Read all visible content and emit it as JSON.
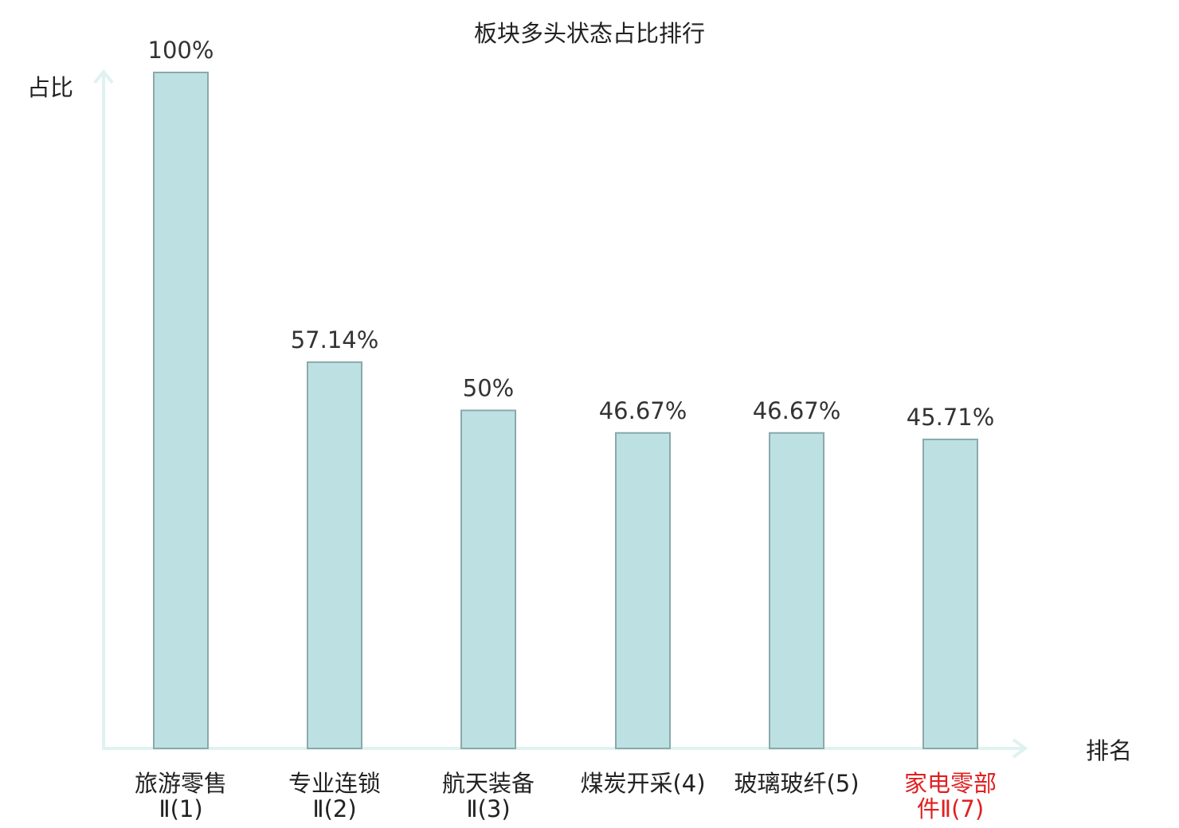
{
  "chart_data": {
    "type": "bar",
    "title": "板块多头状态占比排行",
    "ylabel": "占比",
    "xlabel": "排名",
    "ylim": [
      0,
      100
    ],
    "grid": false,
    "legend": "none",
    "categories": [
      {
        "line1": "旅游零售",
        "line2": "Ⅱ(1)",
        "highlight": false
      },
      {
        "line1": "专业连锁",
        "line2": "Ⅱ(2)",
        "highlight": false
      },
      {
        "line1": "航天装备",
        "line2": "Ⅱ(3)",
        "highlight": false
      },
      {
        "line1": "煤炭开采(4)",
        "line2": "",
        "highlight": false
      },
      {
        "line1": "玻璃玻纤(5)",
        "line2": "",
        "highlight": false
      },
      {
        "line1": "家电零部",
        "line2": "件Ⅱ(7)",
        "highlight": true
      }
    ],
    "values": [
      100,
      57.14,
      50,
      46.67,
      46.67,
      45.71
    ],
    "value_labels": [
      "100%",
      "57.14%",
      "50%",
      "46.67%",
      "46.67%",
      "45.71%"
    ],
    "colors": {
      "bar_fill": "#bde1e3",
      "bar_stroke": "#8aa9ac",
      "axis": "#e0f2ef",
      "text": "#333333",
      "highlight": "#e02020"
    }
  }
}
